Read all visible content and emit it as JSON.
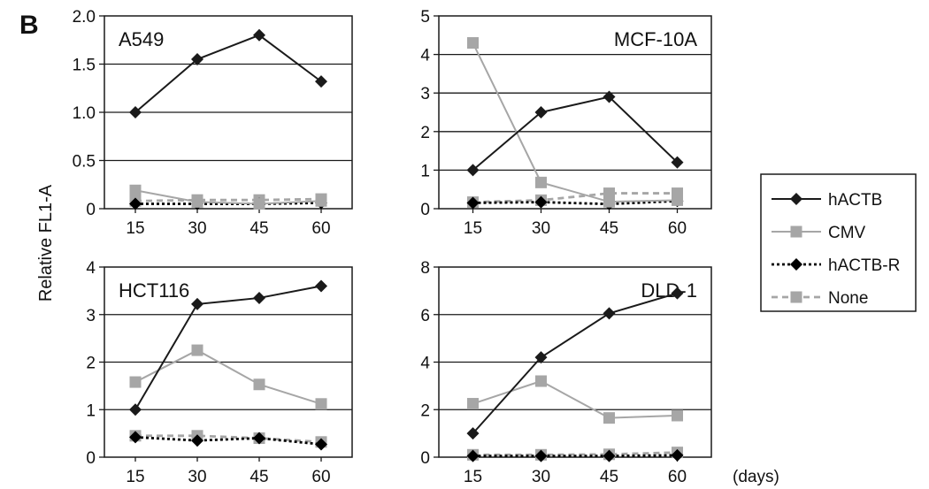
{
  "figure": {
    "panel_letter": "B",
    "ylabel": "Relative FL1-A",
    "x_unit": "(days)"
  },
  "legend": [
    {
      "name": "hACTB",
      "color": "#1a1a1a",
      "style": "solid",
      "marker": "diamond"
    },
    {
      "name": "CMV",
      "color": "#a6a6a6",
      "style": "solid",
      "marker": "square"
    },
    {
      "name": "hACTB-R",
      "color": "#000000",
      "style": "dotted",
      "marker": "diamond"
    },
    {
      "name": "None",
      "color": "#a6a6a6",
      "style": "dashed",
      "marker": "square"
    }
  ],
  "chart_data": [
    {
      "type": "line",
      "title": "A549",
      "x": [
        15,
        30,
        45,
        60
      ],
      "ylim": [
        0,
        2.0
      ],
      "yticks": [
        "0",
        "0.5",
        "1.0",
        "1.5",
        "2.0"
      ],
      "yticks_values": [
        0,
        0.5,
        1.0,
        1.5,
        2.0
      ],
      "series": [
        {
          "name": "hACTB",
          "values": [
            1.0,
            1.55,
            1.8,
            1.32
          ]
        },
        {
          "name": "CMV",
          "values": [
            0.19,
            0.07,
            0.05,
            0.08
          ]
        },
        {
          "name": "hACTB-R",
          "values": [
            0.05,
            0.05,
            0.05,
            0.06
          ]
        },
        {
          "name": "None",
          "values": [
            0.08,
            0.09,
            0.09,
            0.1
          ]
        }
      ]
    },
    {
      "type": "line",
      "title": "MCF-10A",
      "x": [
        15,
        30,
        45,
        60
      ],
      "ylim": [
        0,
        5
      ],
      "yticks": [
        "0",
        "1",
        "2",
        "3",
        "4",
        "5"
      ],
      "yticks_values": [
        0,
        1,
        2,
        3,
        4,
        5
      ],
      "series": [
        {
          "name": "hACTB",
          "values": [
            1.0,
            2.5,
            2.9,
            1.2
          ]
        },
        {
          "name": "CMV",
          "values": [
            4.3,
            0.68,
            0.18,
            0.22
          ]
        },
        {
          "name": "hACTB-R",
          "values": [
            0.15,
            0.17,
            0.12,
            0.2
          ]
        },
        {
          "name": "None",
          "values": [
            0.17,
            0.22,
            0.4,
            0.4
          ]
        }
      ]
    },
    {
      "type": "line",
      "title": "HCT116",
      "x": [
        15,
        30,
        45,
        60
      ],
      "ylim": [
        0,
        4
      ],
      "yticks": [
        "0",
        "1",
        "2",
        "3",
        "4"
      ],
      "yticks_values": [
        0,
        1,
        2,
        3,
        4
      ],
      "series": [
        {
          "name": "hACTB",
          "values": [
            1.0,
            3.22,
            3.35,
            3.6
          ]
        },
        {
          "name": "CMV",
          "values": [
            1.58,
            2.25,
            1.53,
            1.12
          ]
        },
        {
          "name": "hACTB-R",
          "values": [
            0.42,
            0.35,
            0.4,
            0.27
          ]
        },
        {
          "name": "None",
          "values": [
            0.45,
            0.45,
            0.4,
            0.32
          ]
        }
      ]
    },
    {
      "type": "line",
      "title": "DLD-1",
      "x": [
        15,
        30,
        45,
        60
      ],
      "ylim": [
        0,
        8
      ],
      "yticks": [
        "0",
        "2",
        "4",
        "6",
        "8"
      ],
      "yticks_values": [
        0,
        2,
        4,
        6,
        8
      ],
      "series": [
        {
          "name": "hACTB",
          "values": [
            1.0,
            4.2,
            6.05,
            6.9
          ]
        },
        {
          "name": "CMV",
          "values": [
            2.25,
            3.2,
            1.65,
            1.75
          ]
        },
        {
          "name": "hACTB-R",
          "values": [
            0.05,
            0.05,
            0.05,
            0.08
          ]
        },
        {
          "name": "None",
          "values": [
            0.1,
            0.1,
            0.12,
            0.2
          ]
        }
      ]
    }
  ]
}
